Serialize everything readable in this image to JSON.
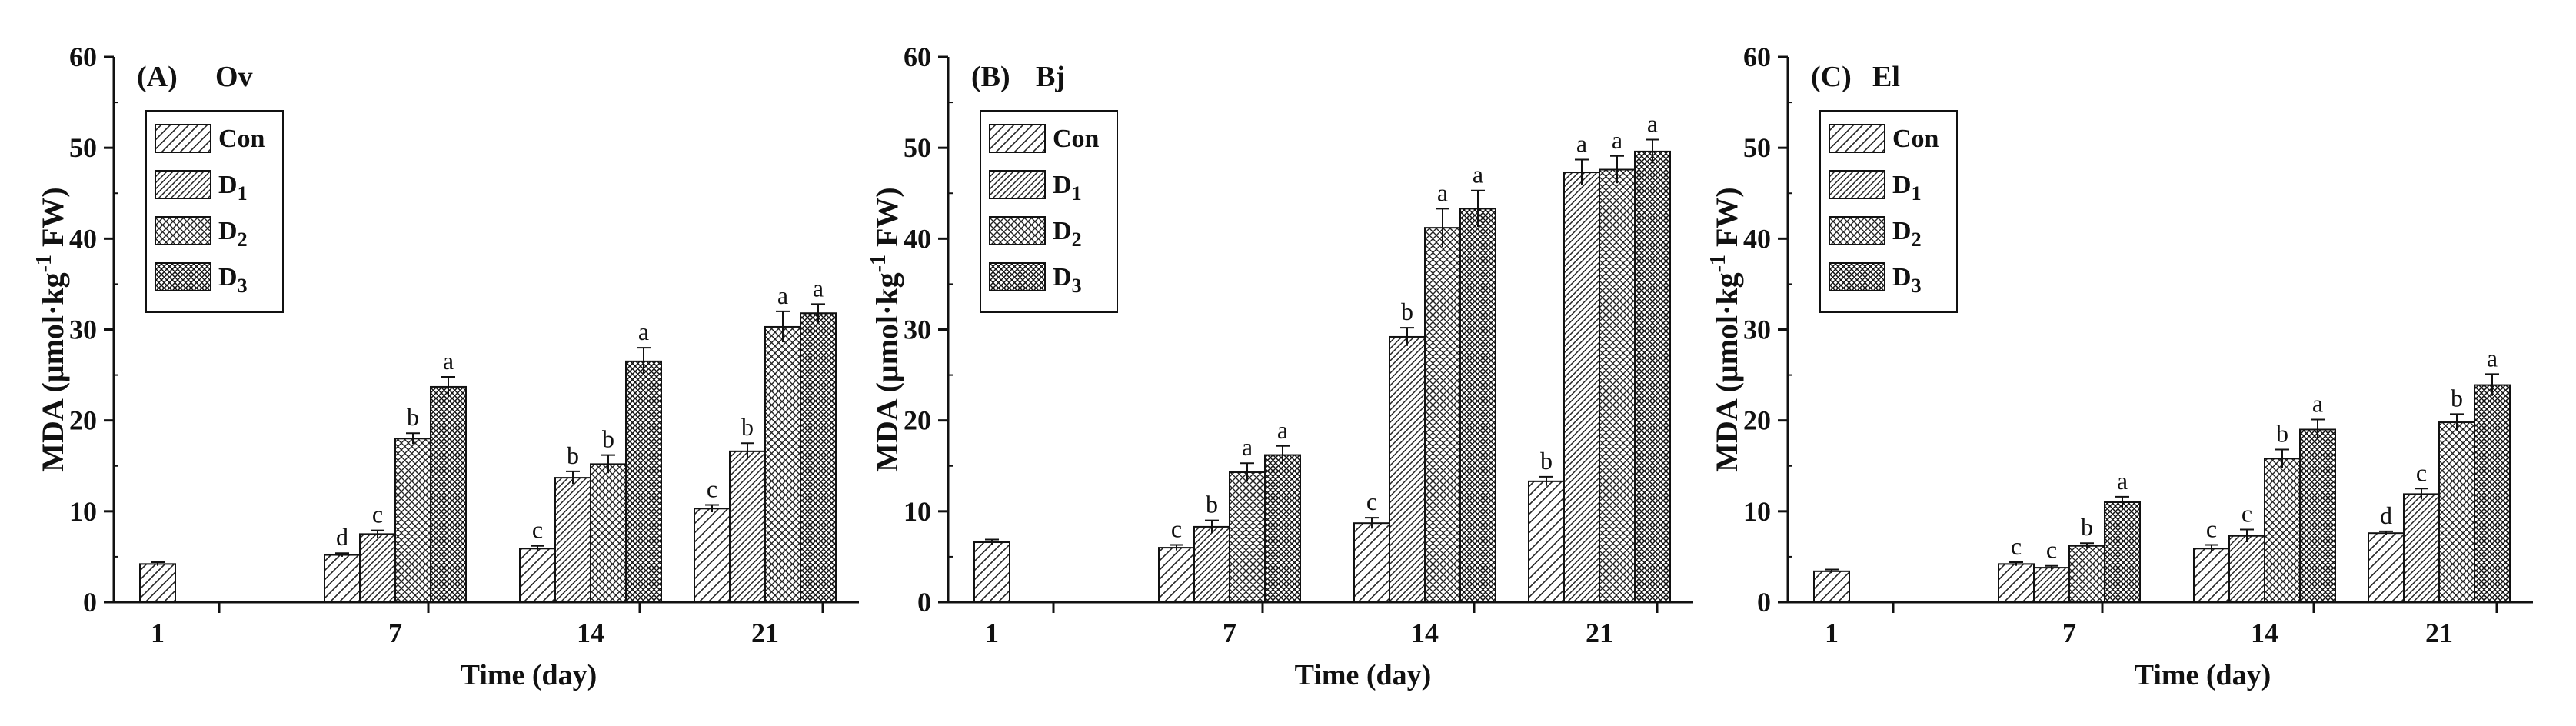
{
  "figure": {
    "xlabel": "Time (day)",
    "ylabel_main": "MDA (μmol·kg",
    "ylabel_sup": "-1",
    "ylabel_tail": " FW)"
  },
  "legend": {
    "items": [
      {
        "label": "Con",
        "sub": "",
        "pattern": "pat-con"
      },
      {
        "label": "D",
        "sub": "1",
        "pattern": "pat-d1"
      },
      {
        "label": "D",
        "sub": "2",
        "pattern": "pat-d2"
      },
      {
        "label": "D",
        "sub": "3",
        "pattern": "pat-d3"
      }
    ]
  },
  "chart_data": [
    {
      "type": "bar",
      "panel": "(A)",
      "title": "Ov",
      "categories": [
        "1",
        "7",
        "14",
        "21"
      ],
      "ylim": [
        0,
        60
      ],
      "yticks": [
        0,
        10,
        20,
        30,
        40,
        50,
        60
      ],
      "xlabel": "Time (day)",
      "ylabel": "MDA (μmol·kg-1 FW)",
      "day1": {
        "value": 4.2,
        "error": 0.2
      },
      "series": [
        {
          "name": "Con",
          "values": [
            null,
            5.2,
            5.9,
            10.3
          ],
          "errors": [
            null,
            0.2,
            0.3,
            0.4
          ],
          "letters": [
            null,
            "d",
            "c",
            "c"
          ]
        },
        {
          "name": "D1",
          "values": [
            null,
            7.5,
            13.7,
            16.6
          ],
          "errors": [
            null,
            0.4,
            0.7,
            0.9
          ],
          "letters": [
            null,
            "c",
            "b",
            "b"
          ]
        },
        {
          "name": "D2",
          "values": [
            null,
            18.0,
            15.2,
            30.3
          ],
          "errors": [
            null,
            0.6,
            1.0,
            1.7
          ],
          "letters": [
            null,
            "b",
            "b",
            "a"
          ]
        },
        {
          "name": "D3",
          "values": [
            null,
            23.7,
            26.5,
            31.8
          ],
          "errors": [
            null,
            1.1,
            1.5,
            1.0
          ],
          "letters": [
            null,
            "a",
            "a",
            "a"
          ]
        }
      ]
    },
    {
      "type": "bar",
      "panel": "(B)",
      "title": "Bj",
      "categories": [
        "1",
        "7",
        "14",
        "21"
      ],
      "ylim": [
        0,
        60
      ],
      "yticks": [
        0,
        10,
        20,
        30,
        40,
        50,
        60
      ],
      "xlabel": "Time (day)",
      "ylabel": "MDA (μmol·kg-1 FW)",
      "day1": {
        "value": 6.6,
        "error": 0.3
      },
      "series": [
        {
          "name": "Con",
          "values": [
            null,
            6.0,
            8.7,
            13.3
          ],
          "errors": [
            null,
            0.3,
            0.6,
            0.5
          ],
          "letters": [
            null,
            "c",
            "c",
            "b"
          ]
        },
        {
          "name": "D1",
          "values": [
            null,
            8.3,
            29.2,
            47.3
          ],
          "errors": [
            null,
            0.7,
            1.0,
            1.4
          ],
          "letters": [
            null,
            "b",
            "b",
            "a"
          ]
        },
        {
          "name": "D2",
          "values": [
            null,
            14.3,
            41.2,
            47.6
          ],
          "errors": [
            null,
            1.0,
            2.1,
            1.5
          ],
          "letters": [
            null,
            "a",
            "a",
            "a"
          ]
        },
        {
          "name": "D3",
          "values": [
            null,
            16.2,
            43.3,
            49.6
          ],
          "errors": [
            null,
            1.0,
            2.0,
            1.3
          ],
          "letters": [
            null,
            "a",
            "a",
            "a"
          ]
        }
      ]
    },
    {
      "type": "bar",
      "panel": "(C)",
      "title": "El",
      "categories": [
        "1",
        "7",
        "14",
        "21"
      ],
      "ylim": [
        0,
        60
      ],
      "yticks": [
        0,
        10,
        20,
        30,
        40,
        50,
        60
      ],
      "xlabel": "Time (day)",
      "ylabel": "MDA (μmol·kg-1 FW)",
      "day1": {
        "value": 3.4,
        "error": 0.2
      },
      "series": [
        {
          "name": "Con",
          "values": [
            null,
            4.2,
            5.9,
            7.6
          ],
          "errors": [
            null,
            0.2,
            0.4,
            0.2
          ],
          "letters": [
            null,
            "c",
            "c",
            "d"
          ]
        },
        {
          "name": "D1",
          "values": [
            null,
            3.8,
            7.3,
            11.9
          ],
          "errors": [
            null,
            0.2,
            0.7,
            0.6
          ],
          "letters": [
            null,
            "c",
            "c",
            "c"
          ]
        },
        {
          "name": "D2",
          "values": [
            null,
            6.2,
            15.8,
            19.8
          ],
          "errors": [
            null,
            0.3,
            1.0,
            0.9
          ],
          "letters": [
            null,
            "b",
            "b",
            "b"
          ]
        },
        {
          "name": "D3",
          "values": [
            null,
            11.0,
            19.0,
            23.9
          ],
          "errors": [
            null,
            0.6,
            1.1,
            1.2
          ],
          "letters": [
            null,
            "a",
            "a",
            "a"
          ]
        }
      ]
    }
  ]
}
